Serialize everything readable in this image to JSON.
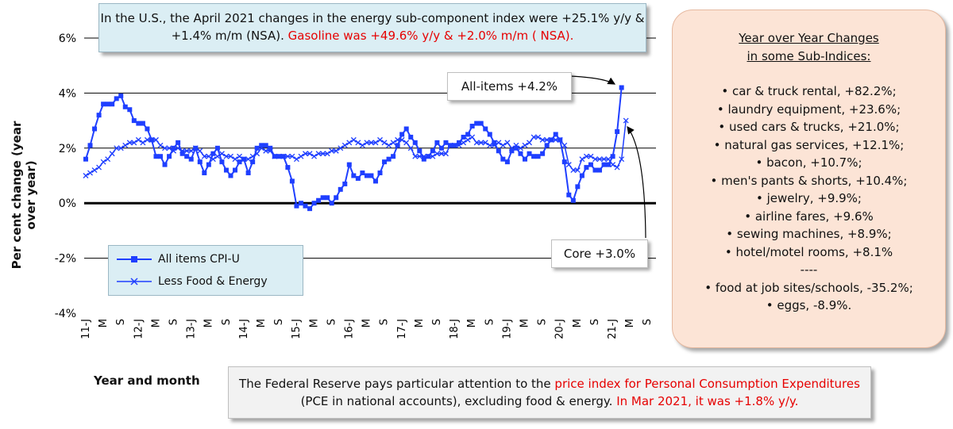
{
  "top_callout": {
    "text": "In the U.S., the April 2021 changes in the energy sub-component index were +25.1% y/y & +1.4% m/m (NSA).",
    "highlight": "Gasoline was +49.6% y/y & +2.0% m/m ( NSA)."
  },
  "bottom_callout": {
    "part1": "The Federal Reserve pays particular attention to the",
    "highlight1": "price index for Personal Consumption Expenditures",
    "part2": "(PCE in national accounts), excluding food & energy.",
    "highlight2": "In Mar 2021, it was +1.8% y/y."
  },
  "side_panel": {
    "title_line1": "Year over Year Changes",
    "title_line2": "in some Sub-Indices:",
    "items": [
      "• car & truck rental, +82.2%;",
      "• laundry equipment, +23.6%;",
      "• used cars & trucks, +21.0%;",
      "• natural gas services, +12.1%;",
      "• bacon, +10.7%;",
      "• men's pants & shorts, +10.4%;",
      "• jewelry, +9.9%;",
      "• airline fares, +9.6%",
      "• sewing machines, +8.9%;",
      "• hotel/motel rooms, +8.1%",
      "----",
      "• food at job sites/schools, -35.2%;",
      "• eggs, -8.9%."
    ]
  },
  "annotations": {
    "all_items": "All-items +4.2%",
    "core": "Core +3.0%"
  },
  "colors": {
    "series": "#1f3fff",
    "zero_line": "#000000",
    "grid": "#000000",
    "red_text": "#e60000"
  },
  "chart_data": {
    "type": "line",
    "title": "",
    "xlabel": "Year and month",
    "ylabel": "Per cent change (year over year)",
    "ylim": [
      -4,
      6
    ],
    "yticks": [
      -4,
      -2,
      0,
      2,
      4,
      6
    ],
    "ytick_labels": [
      "-4%",
      "-2%",
      "0%",
      "2%",
      "4%",
      "6%"
    ],
    "grid": "horizontal",
    "legend_position": "bottom-left",
    "x_tick_labels": [
      "11-J",
      "M",
      "S",
      "12-J",
      "M",
      "S",
      "13-J",
      "M",
      "S",
      "14-J",
      "M",
      "S",
      "15-J",
      "M",
      "S",
      "16-J",
      "M",
      "S",
      "17-J",
      "M",
      "S",
      "18-J",
      "M",
      "S",
      "19-J",
      "M",
      "S",
      "20-J",
      "M",
      "S",
      "21-J",
      "M",
      "S"
    ],
    "series": [
      {
        "name": "All items CPI-U",
        "marker": "square",
        "values": [
          1.6,
          2.1,
          2.7,
          3.2,
          3.6,
          3.6,
          3.6,
          3.8,
          3.9,
          3.5,
          3.4,
          3.0,
          2.9,
          2.9,
          2.7,
          2.3,
          1.7,
          1.7,
          1.4,
          1.7,
          2.0,
          2.2,
          1.8,
          1.7,
          1.6,
          2.0,
          1.5,
          1.1,
          1.4,
          1.8,
          2.0,
          1.5,
          1.2,
          1.0,
          1.2,
          1.5,
          1.6,
          1.1,
          1.5,
          2.0,
          2.1,
          2.1,
          2.0,
          1.7,
          1.7,
          1.7,
          1.3,
          0.8,
          -0.1,
          0.0,
          -0.1,
          -0.2,
          0.0,
          0.1,
          0.2,
          0.2,
          0.0,
          0.2,
          0.5,
          0.7,
          1.4,
          1.0,
          0.9,
          1.1,
          1.0,
          1.0,
          0.8,
          1.1,
          1.5,
          1.6,
          1.7,
          2.1,
          2.5,
          2.7,
          2.4,
          2.2,
          1.9,
          1.6,
          1.7,
          1.9,
          2.2,
          2.0,
          2.2,
          2.1,
          2.1,
          2.2,
          2.4,
          2.5,
          2.8,
          2.9,
          2.9,
          2.7,
          2.5,
          2.2,
          1.9,
          1.6,
          1.5,
          1.9,
          2.0,
          1.8,
          1.6,
          1.8,
          1.7,
          1.7,
          1.8,
          2.1,
          2.3,
          2.5,
          2.3,
          1.5,
          0.3,
          0.1,
          0.6,
          1.0,
          1.3,
          1.4,
          1.2,
          1.2,
          1.4,
          1.4,
          1.7,
          2.6,
          4.2
        ]
      },
      {
        "name": "Less Food & Energy",
        "marker": "x",
        "values": [
          1.0,
          1.1,
          1.2,
          1.3,
          1.5,
          1.6,
          1.8,
          2.0,
          2.0,
          2.1,
          2.2,
          2.2,
          2.3,
          2.2,
          2.3,
          2.3,
          2.3,
          2.1,
          2.0,
          2.0,
          1.9,
          2.0,
          1.9,
          1.9,
          1.9,
          2.0,
          1.9,
          1.7,
          1.7,
          1.6,
          1.7,
          1.8,
          1.7,
          1.7,
          1.6,
          1.7,
          1.6,
          1.6,
          1.7,
          1.8,
          2.0,
          1.9,
          1.9,
          1.7,
          1.7,
          1.7,
          1.7,
          1.7,
          1.6,
          1.7,
          1.8,
          1.8,
          1.7,
          1.8,
          1.8,
          1.8,
          1.9,
          1.9,
          2.0,
          2.1,
          2.2,
          2.3,
          2.2,
          2.1,
          2.2,
          2.2,
          2.2,
          2.3,
          2.2,
          2.1,
          2.2,
          2.3,
          2.3,
          2.2,
          2.0,
          1.7,
          1.7,
          1.7,
          1.7,
          1.7,
          1.8,
          1.8,
          1.8,
          2.1,
          2.1,
          2.1,
          2.2,
          2.3,
          2.4,
          2.2,
          2.2,
          2.2,
          2.1,
          2.1,
          2.2,
          2.1,
          2.2,
          2.0,
          2.1,
          2.0,
          2.1,
          2.2,
          2.4,
          2.4,
          2.3,
          2.3,
          2.3,
          2.3,
          2.3,
          2.1,
          1.4,
          1.2,
          1.2,
          1.6,
          1.7,
          1.7,
          1.6,
          1.6,
          1.6,
          1.6,
          1.4,
          1.3,
          1.6,
          3.0
        ]
      }
    ]
  }
}
